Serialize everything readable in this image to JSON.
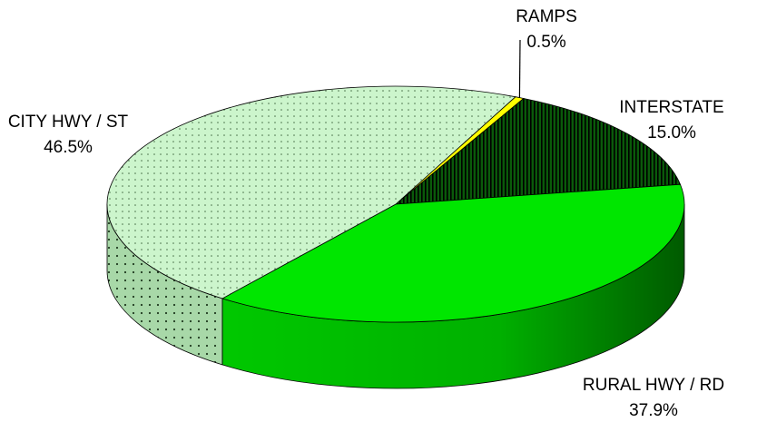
{
  "chart_data": {
    "type": "pie",
    "title": "",
    "slices": [
      {
        "name": "RAMPS",
        "label": "RAMPS",
        "value": 0.5,
        "value_label": "0.5%",
        "color": "#ffff00",
        "pattern": "solid"
      },
      {
        "name": "INTERSTATE",
        "label": "INTERSTATE",
        "value": 15.0,
        "value_label": "15.0%",
        "color": "#0f7a0f",
        "pattern": "vertical-stripes"
      },
      {
        "name": "RURAL HWY / RD",
        "label": "RURAL HWY / RD",
        "value": 37.9,
        "value_label": "37.9%",
        "color": "#00e600",
        "pattern": "solid"
      },
      {
        "name": "CITY HWY / ST",
        "label": "CITY HWY / ST",
        "value": 46.5,
        "value_label": "46.5%",
        "color": "#ccf5cc",
        "pattern": "dots"
      }
    ],
    "style": "3d-tilted",
    "legend": "none"
  }
}
